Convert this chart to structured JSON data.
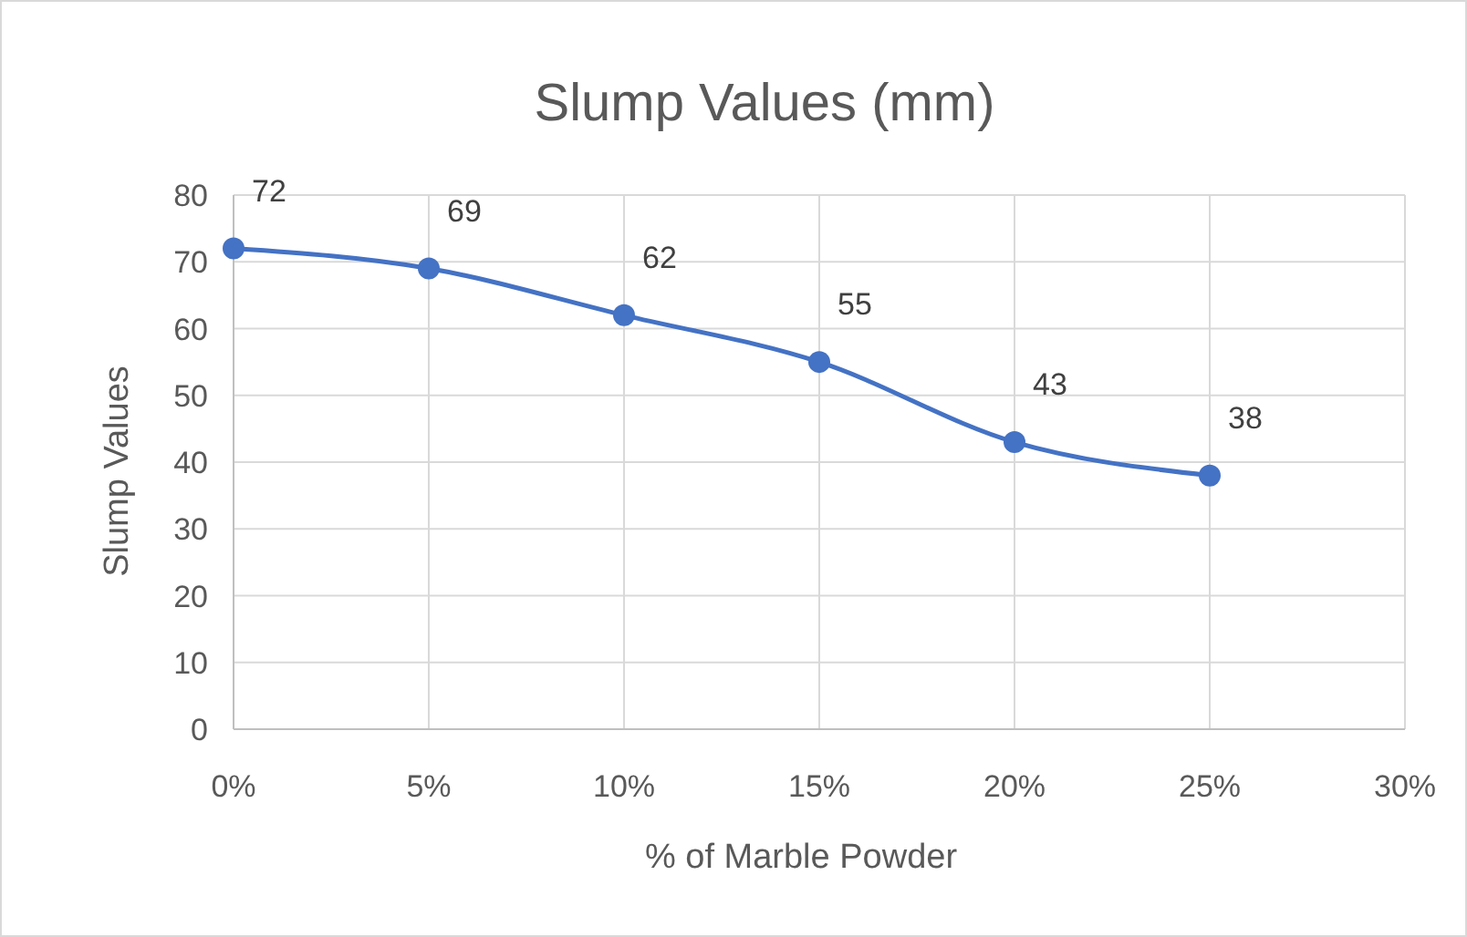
{
  "chart_data": {
    "type": "line",
    "title": "Slump Values (mm)",
    "xlabel": "% of Marble Powder",
    "ylabel": "Slump Values",
    "x": [
      0,
      5,
      10,
      15,
      20,
      25
    ],
    "series": [
      {
        "color": "#4472c4",
        "values": [
          72,
          69,
          62,
          55,
          43,
          38
        ]
      }
    ],
    "xlim": [
      0,
      30
    ],
    "xticks": [
      {
        "value": 0,
        "label": "0%"
      },
      {
        "value": 5,
        "label": "5%"
      },
      {
        "value": 10,
        "label": "10%"
      },
      {
        "value": 15,
        "label": "15%"
      },
      {
        "value": 20,
        "label": "20%"
      },
      {
        "value": 25,
        "label": "25%"
      },
      {
        "value": 30,
        "label": "30%"
      }
    ],
    "ylim": [
      0,
      80
    ],
    "yticks": [
      0,
      10,
      20,
      30,
      40,
      50,
      60,
      70,
      80
    ],
    "grid": true,
    "marker": "circle",
    "line_style": "solid",
    "data_labels": true
  }
}
